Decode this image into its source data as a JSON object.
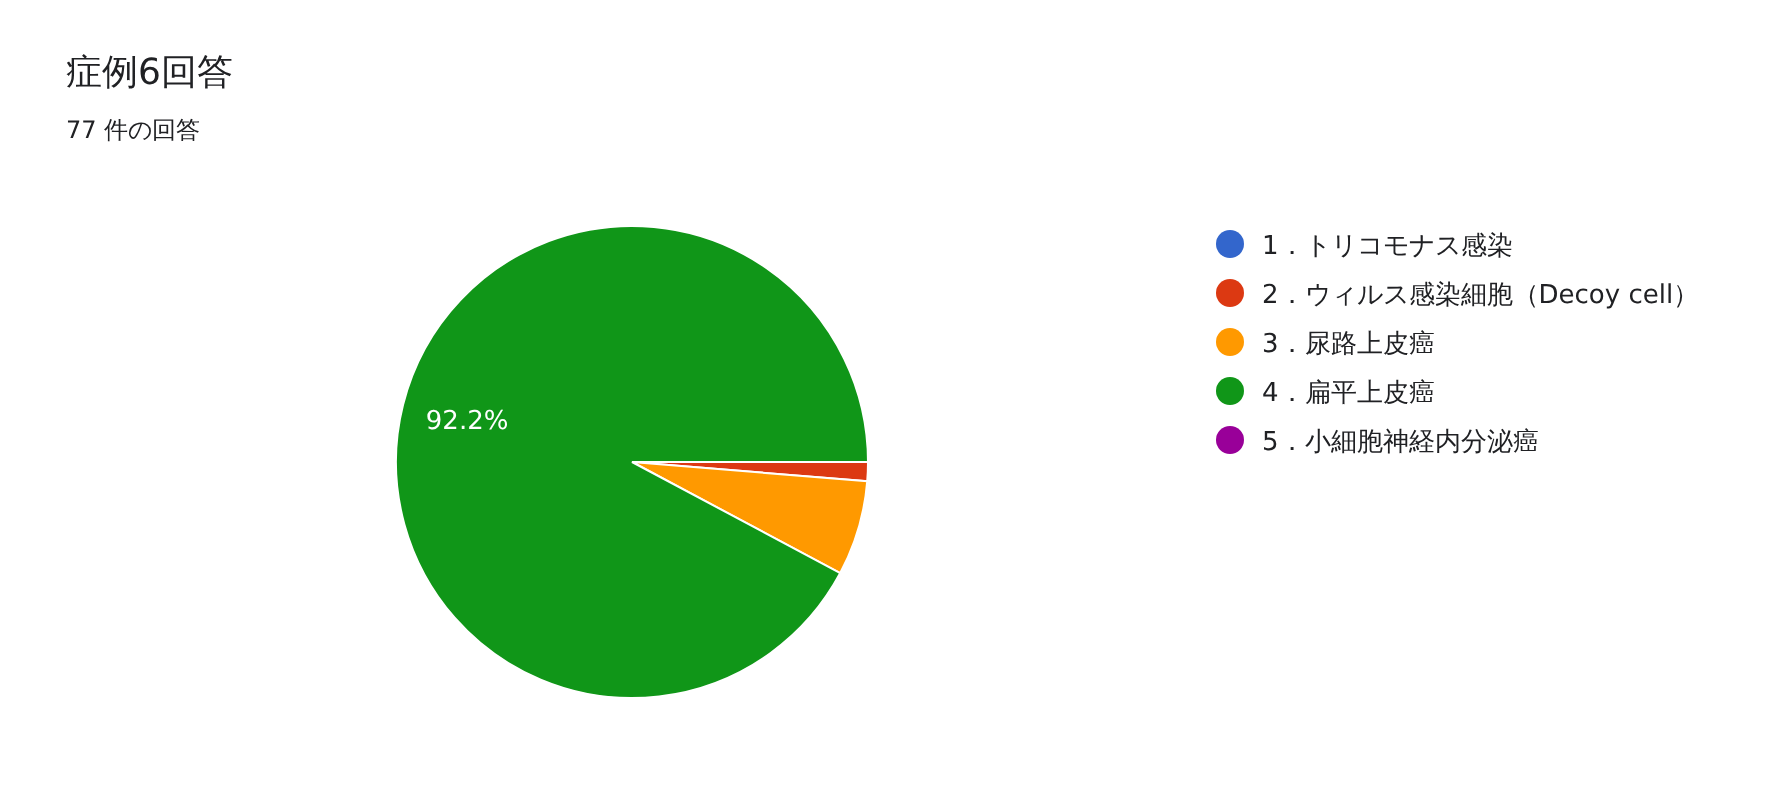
{
  "chart_data": {
    "type": "pie",
    "title": "症例6回答",
    "subtitle": "77 件の回答",
    "categories": [
      "1．トリコモナス感染",
      "2．ウィルス感染細胞（Decoy cell）",
      "3．尿路上皮癌",
      "4．扁平上皮癌",
      "5．小細胞神経内分泌癌"
    ],
    "values": [
      0,
      1.3,
      6.5,
      92.2,
      0
    ],
    "colors": [
      "#3366cc",
      "#dc3912",
      "#ff9900",
      "#109618",
      "#990099"
    ],
    "value_labels": [
      null,
      null,
      null,
      "92.2%",
      null
    ],
    "legend": "right"
  }
}
